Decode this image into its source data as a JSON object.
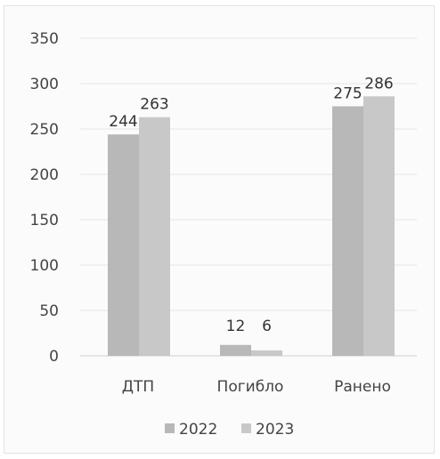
{
  "chart_data": {
    "type": "bar",
    "categories": [
      "ДТП",
      "Погибло",
      "Ранено"
    ],
    "series": [
      {
        "name": "2022",
        "values": [
          244,
          12,
          275
        ],
        "color": "#b8b8b8"
      },
      {
        "name": "2023",
        "values": [
          263,
          6,
          286
        ],
        "color": "#c8c8c8"
      }
    ],
    "yticks": [
      0,
      50,
      100,
      150,
      200,
      250,
      300,
      350
    ],
    "ylim": [
      0,
      350
    ],
    "grid": true,
    "legend_position": "bottom",
    "title": "",
    "xlabel": "",
    "ylabel": ""
  }
}
